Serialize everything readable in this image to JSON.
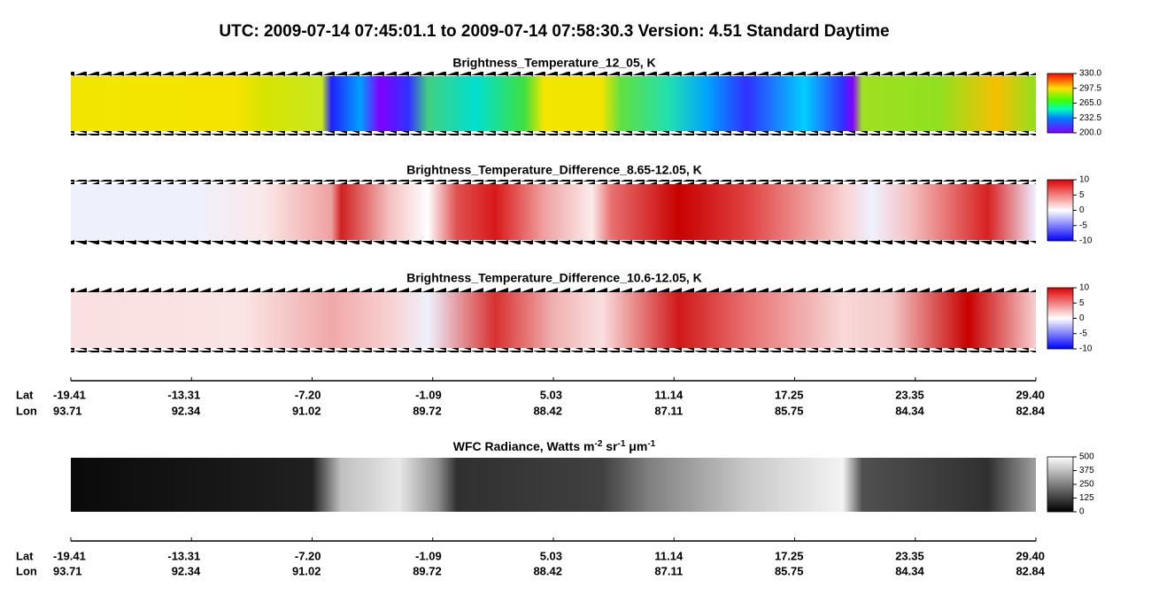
{
  "header": {
    "title": "UTC:  2009-07-14   07:45:01.1  to  2009-07-14   07:58:30.3    Version: 4.51  Standard Daytime"
  },
  "panels": [
    {
      "title": "Brightness_Temperature_12_05, K",
      "colorbar": {
        "lim": [
          200,
          330
        ],
        "ticks": [
          {
            "value": 200,
            "label": "200.0"
          },
          232.5,
          {
            "value": 265,
            "label": "265.0"
          },
          297.5,
          {
            "value": 330,
            "label": "330.0"
          }
        ]
      }
    },
    {
      "title": "Brightness_Temperature_Difference_8.65-12.05, K",
      "colorbar": {
        "lim": [
          -10,
          10
        ],
        "ticks": [
          -10,
          -5,
          0,
          5,
          10
        ]
      }
    },
    {
      "title": "Brightness_Temperature_Difference_10.6-12.05, K",
      "colorbar": {
        "lim": [
          -10,
          10
        ],
        "ticks": [
          -10,
          -5,
          0,
          5,
          10
        ]
      }
    },
    {
      "title_parts": [
        "WFC Radiance, Watts m",
        "-2",
        " sr",
        "-1",
        " μm",
        "-1"
      ],
      "colorbar": {
        "lim": [
          0,
          500
        ],
        "ticks": [
          0,
          125,
          250,
          375,
          500
        ]
      }
    }
  ],
  "axis": {
    "lat_label": "Lat",
    "lon_label": "Lon",
    "lat": [
      "-19.41",
      "-13.31",
      "-7.20",
      "-1.09",
      "5.03",
      "11.14",
      "17.25",
      "23.35",
      "29.40"
    ],
    "lon": [
      "93.71",
      "92.34",
      "91.02",
      "89.72",
      "88.42",
      "87.11",
      "85.75",
      "84.34",
      "82.84"
    ]
  }
}
